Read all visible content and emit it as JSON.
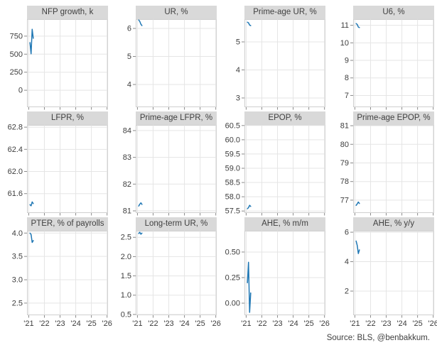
{
  "figure": {
    "source_note": "Source: BLS, @benbakkum."
  },
  "colors": {
    "line": "#1f77b4",
    "title_bg": "#d9d9d9",
    "grid": "#e5e5e5",
    "border": "#cfcfcf",
    "tick": "#8a8a8a",
    "text": "#3d3d3d"
  },
  "x_axis": {
    "tick_labels": [
      "'21",
      "'22",
      "'23",
      "'24",
      "'25",
      "'26"
    ],
    "tick_years": [
      2021,
      2022,
      2023,
      2024,
      2025,
      2026
    ],
    "range": [
      2020.89,
      2026.06
    ]
  },
  "chart_data": [
    {
      "type": "line",
      "title": "NFP growth, k",
      "ylim": [
        -235,
        985
      ],
      "ytick_values": [
        0,
        250,
        500,
        750
      ],
      "ytick_labels": [
        "0",
        "250",
        "500",
        "750"
      ],
      "x": [
        2021.08,
        2021.15,
        2021.22,
        2021.29
      ],
      "values": [
        660,
        505,
        845,
        720
      ]
    },
    {
      "type": "line",
      "title": "UR, %",
      "ylim": [
        3.19,
        6.33
      ],
      "ytick_values": [
        4,
        5,
        6
      ],
      "ytick_labels": [
        "4",
        "5",
        "6"
      ],
      "x": [
        2021.08,
        2021.15,
        2021.22,
        2021.29
      ],
      "values": [
        6.3,
        6.25,
        6.15,
        6.1
      ]
    },
    {
      "type": "line",
      "title": "Prime-age UR, %",
      "ylim": [
        2.67,
        5.81
      ],
      "ytick_values": [
        3,
        4,
        5
      ],
      "ytick_labels": [
        "3",
        "4",
        "5"
      ],
      "x": [
        2021.08,
        2021.15,
        2021.22,
        2021.29
      ],
      "values": [
        5.7,
        5.68,
        5.6,
        5.58
      ]
    },
    {
      "type": "line",
      "title": "U6, %",
      "ylim": [
        6.33,
        11.35
      ],
      "ytick_values": [
        7,
        8,
        9,
        10,
        11
      ],
      "ytick_labels": [
        "7",
        "8",
        "9",
        "10",
        "11"
      ],
      "x": [
        2021.08,
        2021.15,
        2021.22,
        2021.29
      ],
      "values": [
        11.1,
        11.05,
        10.9,
        10.87
      ]
    },
    {
      "type": "line",
      "title": "LFPR, %",
      "ylim": [
        61.25,
        62.84
      ],
      "ytick_values": [
        61.6,
        62.0,
        62.4,
        62.8
      ],
      "ytick_labels": [
        "61.6",
        "62.0",
        "62.4",
        "62.8"
      ],
      "x": [
        2021.08,
        2021.15,
        2021.22,
        2021.29
      ],
      "values": [
        61.4,
        61.38,
        61.45,
        61.42
      ]
    },
    {
      "type": "line",
      "title": "Prime-age LFPR, %",
      "ylim": [
        80.92,
        84.21
      ],
      "ytick_values": [
        81,
        82,
        83,
        84
      ],
      "ytick_labels": [
        "81",
        "82",
        "83",
        "84"
      ],
      "x": [
        2021.08,
        2021.15,
        2021.22,
        2021.29
      ],
      "values": [
        81.18,
        81.25,
        81.3,
        81.24
      ]
    },
    {
      "type": "line",
      "title": "EPOP, %",
      "ylim": [
        57.43,
        60.52
      ],
      "ytick_values": [
        57.5,
        58.0,
        58.5,
        59.0,
        59.5,
        60.0,
        60.5
      ],
      "ytick_labels": [
        "57.5",
        "58.0",
        "58.5",
        "59.0",
        "59.5",
        "60.0",
        "60.5"
      ],
      "x": [
        2021.08,
        2021.15,
        2021.22,
        2021.29
      ],
      "values": [
        57.58,
        57.62,
        57.7,
        57.66
      ]
    },
    {
      "type": "line",
      "title": "Prime-age EPOP, %",
      "ylim": [
        76.31,
        81.04
      ],
      "ytick_values": [
        77,
        78,
        79,
        80,
        81
      ],
      "ytick_labels": [
        "77",
        "78",
        "79",
        "80",
        "81"
      ],
      "x": [
        2021.08,
        2021.15,
        2021.22,
        2021.29
      ],
      "values": [
        76.72,
        76.8,
        76.9,
        76.82
      ]
    },
    {
      "type": "line",
      "title": "PTER, % of payrolls",
      "ylim": [
        2.24,
        4.05
      ],
      "ytick_values": [
        2.5,
        3.0,
        3.5,
        4.0
      ],
      "ytick_labels": [
        "2.5",
        "3.0",
        "3.5",
        "4.0"
      ],
      "x": [
        2021.08,
        2021.15,
        2021.22,
        2021.29
      ],
      "values": [
        4.0,
        3.97,
        3.8,
        3.84
      ]
    },
    {
      "type": "line",
      "title": "Long-term UR, %",
      "ylim": [
        0.48,
        2.67
      ],
      "ytick_values": [
        0.5,
        1.0,
        1.5,
        2.0,
        2.5
      ],
      "ytick_labels": [
        "0.5",
        "1.0",
        "1.5",
        "2.0",
        "2.5"
      ],
      "x": [
        2021.08,
        2021.15,
        2021.22,
        2021.29
      ],
      "values": [
        2.6,
        2.63,
        2.58,
        2.61
      ]
    },
    {
      "type": "line",
      "title": "AHE, % m/m",
      "ylim": [
        -0.118,
        0.708
      ],
      "ytick_values": [
        0.0,
        0.25,
        0.5
      ],
      "ytick_labels": [
        "0.00",
        "0.25",
        "0.50"
      ],
      "x": [
        2021.08,
        2021.15,
        2021.22,
        2021.29
      ],
      "values": [
        0.2,
        0.4,
        -0.09,
        0.1
      ]
    },
    {
      "type": "line",
      "title": "AHE, % y/y",
      "ylim": [
        0.36,
        6.1
      ],
      "ytick_values": [
        2,
        4,
        6
      ],
      "ytick_labels": [
        "2",
        "4",
        "6"
      ],
      "x": [
        2021.08,
        2021.15,
        2021.22,
        2021.29
      ],
      "values": [
        5.4,
        5.1,
        4.55,
        4.8
      ]
    }
  ]
}
